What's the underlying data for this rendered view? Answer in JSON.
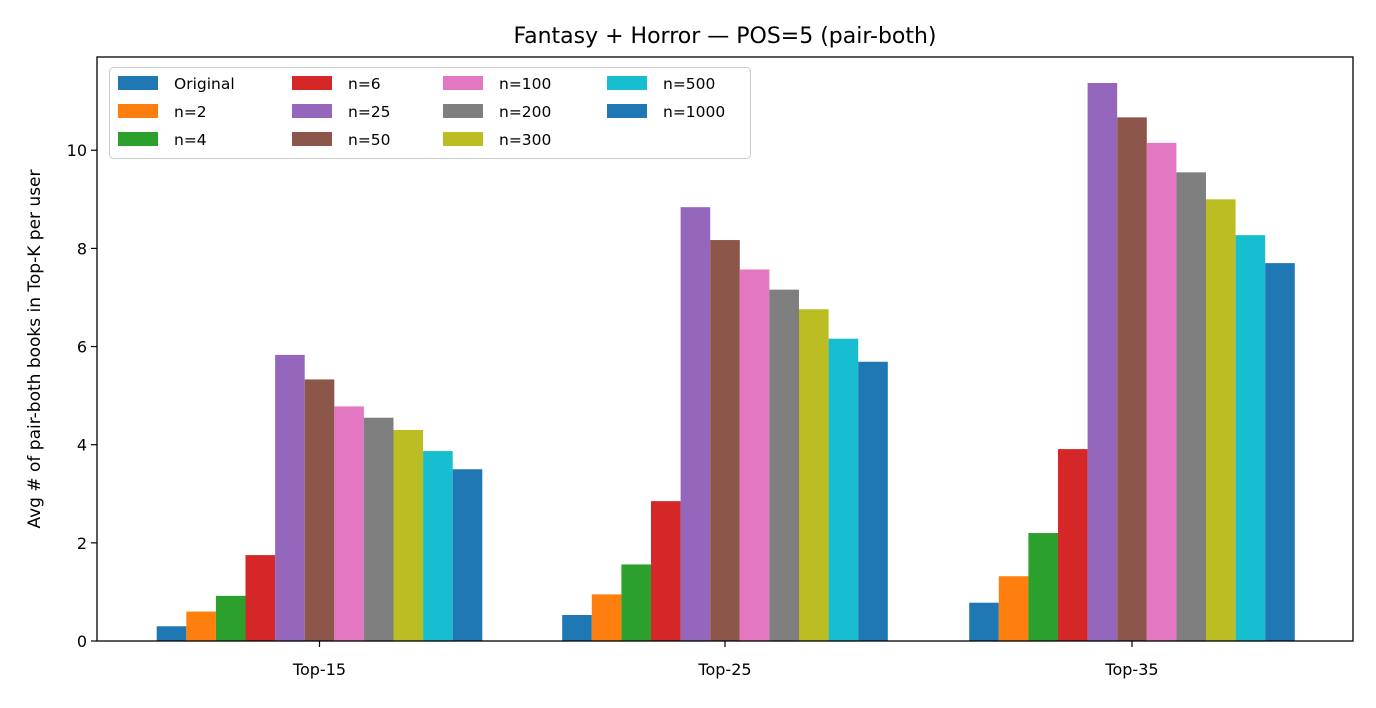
{
  "chart_data": {
    "type": "bar",
    "title": "Fantasy + Horror — POS=5 (pair-both)",
    "xlabel": "",
    "ylabel": "Avg # of pair-both books in Top-K per user",
    "categories": [
      "Top-15",
      "Top-25",
      "Top-35"
    ],
    "ylim": [
      0,
      11.9
    ],
    "yticks": [
      0,
      2,
      4,
      6,
      8,
      10
    ],
    "grid": false,
    "legend_position": "top-left",
    "series": [
      {
        "name": "Original",
        "color": "#1f77b4",
        "values": [
          0.3,
          0.53,
          0.78
        ]
      },
      {
        "name": "n=2",
        "color": "#ff7f0e",
        "values": [
          0.6,
          0.95,
          1.32
        ]
      },
      {
        "name": "n=4",
        "color": "#2ca02c",
        "values": [
          0.92,
          1.56,
          2.2
        ]
      },
      {
        "name": "n=6",
        "color": "#d62728",
        "values": [
          1.75,
          2.85,
          3.91
        ]
      },
      {
        "name": "n=25",
        "color": "#9467bd",
        "values": [
          5.83,
          8.84,
          11.37
        ]
      },
      {
        "name": "n=50",
        "color": "#8c564b",
        "values": [
          5.33,
          8.17,
          10.67
        ]
      },
      {
        "name": "n=100",
        "color": "#e377c2",
        "values": [
          4.78,
          7.57,
          10.15
        ]
      },
      {
        "name": "n=200",
        "color": "#7f7f7f",
        "values": [
          4.55,
          7.16,
          9.55
        ]
      },
      {
        "name": "n=300",
        "color": "#bcbd22",
        "values": [
          4.3,
          6.76,
          9.0
        ]
      },
      {
        "name": "n=500",
        "color": "#17becf",
        "values": [
          3.87,
          6.16,
          8.27
        ]
      },
      {
        "name": "n=1000",
        "color": "#1f77b4",
        "values": [
          3.5,
          5.69,
          7.7
        ]
      }
    ]
  }
}
